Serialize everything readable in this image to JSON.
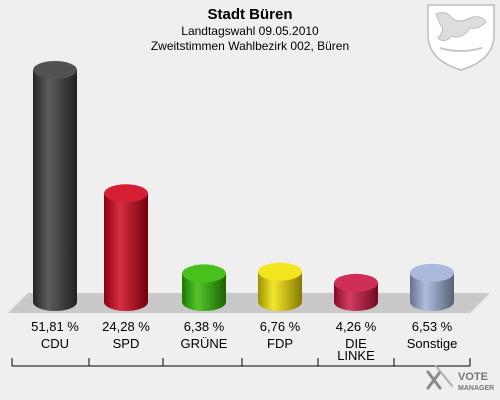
{
  "header": {
    "title": "Stadt Büren",
    "subtitle1": "Landtagswahl 09.05.2010",
    "subtitle2": "Zweitstimmen Wahlbezirk 002, Büren"
  },
  "logo": {
    "line1": "VOTE",
    "line2": "MANAGER"
  },
  "chart_data": {
    "type": "bar",
    "categories": [
      "CDU",
      "SPD",
      "GRÜNE",
      "FDP",
      "DIE LINKE",
      "Sonstige"
    ],
    "values": [
      51.81,
      24.28,
      6.38,
      6.76,
      4.26,
      6.53
    ],
    "value_labels": [
      "51,81 %",
      "24,28 %",
      "6,38 %",
      "6,76 %",
      "4,26 %",
      "6,53 %"
    ],
    "colors": [
      "#3a3a3a",
      "#d0001a",
      "#2fb800",
      "#f2e000",
      "#c8123e",
      "#9fb0d8"
    ],
    "title": "Stadt Büren",
    "grid": false
  }
}
